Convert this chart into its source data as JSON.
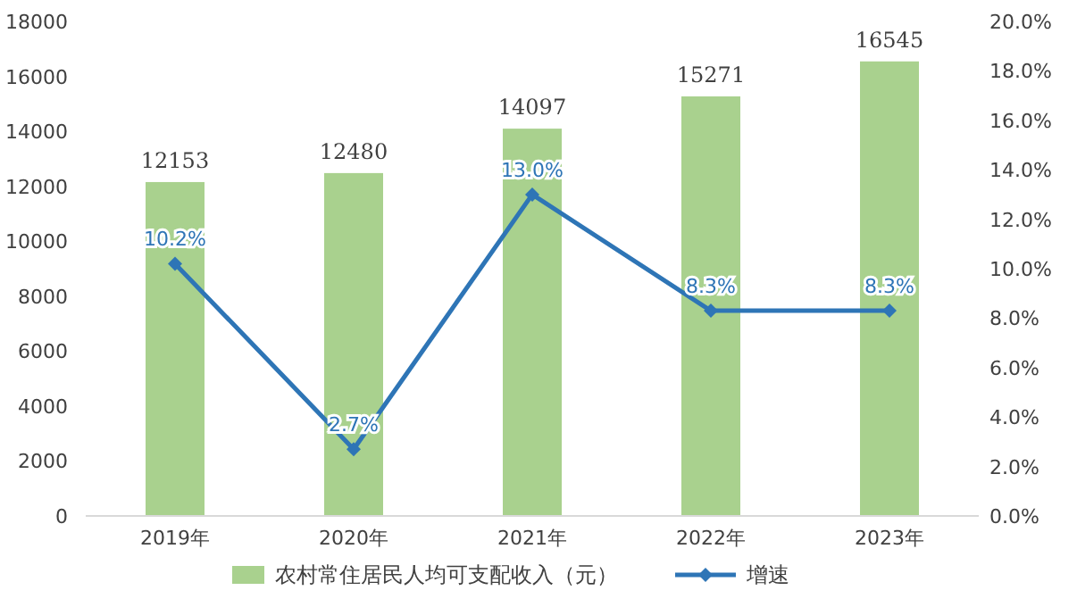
{
  "chart_data": {
    "type": "bar",
    "categories": [
      "2019年",
      "2020年",
      "2021年",
      "2022年",
      "2023年"
    ],
    "series": [
      {
        "name": "农村常住居民人均可支配收入（元）",
        "color": "#a9d18e",
        "values": [
          12153,
          12480,
          14097,
          15271,
          16545
        ],
        "value_labels": [
          "12153",
          "12480",
          "14097",
          "15271",
          "16545"
        ]
      },
      {
        "name": "增速",
        "type": "line",
        "axis": "y2",
        "color": "#2e75b6",
        "marker": "diamond",
        "values": [
          10.2,
          2.7,
          13.0,
          8.3,
          8.3
        ],
        "value_labels": [
          "10.2%",
          "2.7%",
          "13.0%",
          "8.3%",
          "8.3%"
        ]
      }
    ],
    "ylim": [
      0,
      18000
    ],
    "yticks": [
      0,
      2000,
      4000,
      6000,
      8000,
      10000,
      12000,
      14000,
      16000,
      18000
    ],
    "y2lim": [
      0,
      20
    ],
    "y2ticks": [
      {
        "value": 0,
        "label": "0.0%"
      },
      {
        "value": 2,
        "label": "2.0%"
      },
      {
        "value": 4,
        "label": "4.0%"
      },
      {
        "value": 6,
        "label": "6.0%"
      },
      {
        "value": 8,
        "label": "8.0%"
      },
      {
        "value": 10,
        "label": "10.0%"
      },
      {
        "value": 12,
        "label": "12.0%"
      },
      {
        "value": 14,
        "label": "14.0%"
      },
      {
        "value": 16,
        "label": "16.0%"
      },
      {
        "value": 18,
        "label": "18.0%"
      },
      {
        "value": 20,
        "label": "20.0%"
      }
    ],
    "grid": false,
    "legend": "bottom"
  }
}
